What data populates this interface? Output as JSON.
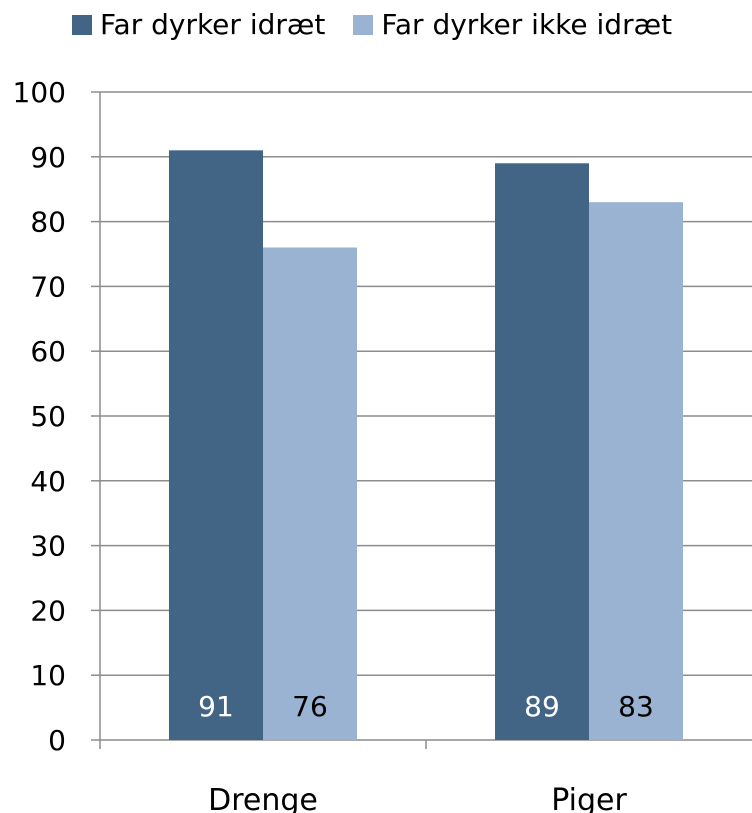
{
  "chart_data": {
    "type": "bar",
    "categories": [
      "Drenge",
      "Piger"
    ],
    "series": [
      {
        "name": "Far dyrker idræt",
        "values": [
          91,
          89
        ],
        "color": "#426585"
      },
      {
        "name": "Far dyrker ikke idræt",
        "values": [
          76,
          83
        ],
        "color": "#9ab3d2"
      }
    ],
    "data_labels": [
      [
        "91",
        "89"
      ],
      [
        "76",
        "83"
      ]
    ],
    "data_label_colors": [
      "#ffffff",
      "#000000"
    ],
    "ylim": [
      0,
      100
    ],
    "yticks": [
      0,
      10,
      20,
      30,
      40,
      50,
      60,
      70,
      80,
      90,
      100
    ],
    "grid": true,
    "legend_position": "top",
    "title": "",
    "xlabel": "",
    "ylabel": ""
  }
}
